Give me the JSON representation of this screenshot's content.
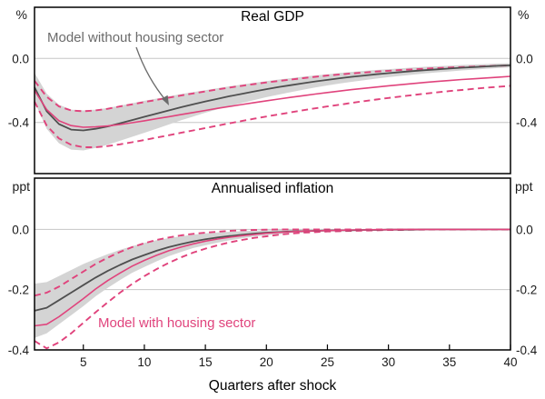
{
  "figure": {
    "xlabel": "Quarters after shock"
  },
  "annotations": {
    "no_housing": "Model without housing sector",
    "with_housing": "Model with housing sector"
  },
  "colors": {
    "gray": "#4f4f4f",
    "pink": "#e0437c",
    "band": "#d4d4d4",
    "grid": "#c6c6c6",
    "frame": "#000000",
    "annotation_gray": "#6b6b6b"
  },
  "chart_data": [
    {
      "type": "line",
      "title": "Real GDP",
      "unit": "%",
      "ylim": [
        -0.72,
        0.32
      ],
      "yticks": [
        0,
        -0.4
      ],
      "ytick_labels": [
        "0.0",
        "-0.4"
      ],
      "xticks": [
        5,
        10,
        15,
        20,
        25,
        30,
        35,
        40
      ],
      "x": [
        1,
        2,
        3,
        4,
        5,
        6,
        7,
        8,
        9,
        10,
        11,
        12,
        13,
        14,
        15,
        16,
        17,
        18,
        19,
        20,
        21,
        22,
        23,
        24,
        25,
        26,
        27,
        28,
        29,
        30,
        31,
        32,
        33,
        34,
        35,
        36,
        37,
        38,
        39,
        40
      ],
      "series": [
        {
          "id": "no-housing-band",
          "style": "area",
          "color_key": "band",
          "upper": [
            -0.09,
            -0.22,
            -0.29,
            -0.32,
            -0.325,
            -0.32,
            -0.31,
            -0.295,
            -0.28,
            -0.265,
            -0.251,
            -0.237,
            -0.223,
            -0.211,
            -0.199,
            -0.186,
            -0.174,
            -0.163,
            -0.152,
            -0.142,
            -0.132,
            -0.123,
            -0.114,
            -0.106,
            -0.099,
            -0.091,
            -0.084,
            -0.078,
            -0.072,
            -0.067,
            -0.062,
            -0.057,
            -0.052,
            -0.049,
            -0.045,
            -0.041,
            -0.038,
            -0.035,
            -0.032,
            -0.03
          ],
          "lower": [
            -0.27,
            -0.44,
            -0.53,
            -0.57,
            -0.575,
            -0.56,
            -0.54,
            -0.515,
            -0.49,
            -0.465,
            -0.439,
            -0.413,
            -0.387,
            -0.363,
            -0.339,
            -0.318,
            -0.298,
            -0.279,
            -0.26,
            -0.242,
            -0.226,
            -0.211,
            -0.196,
            -0.182,
            -0.169,
            -0.157,
            -0.146,
            -0.136,
            -0.126,
            -0.117,
            -0.109,
            -0.101,
            -0.094,
            -0.087,
            -0.081,
            -0.075,
            -0.07,
            -0.065,
            -0.06,
            -0.056
          ]
        },
        {
          "id": "with-housing-band-upper",
          "style": "dashed",
          "color_key": "pink",
          "width": 1.9,
          "values": [
            -0.14,
            -0.24,
            -0.3,
            -0.325,
            -0.33,
            -0.325,
            -0.315,
            -0.3,
            -0.287,
            -0.273,
            -0.259,
            -0.245,
            -0.232,
            -0.219,
            -0.206,
            -0.194,
            -0.182,
            -0.171,
            -0.16,
            -0.15,
            -0.141,
            -0.132,
            -0.123,
            -0.115,
            -0.107,
            -0.1,
            -0.094,
            -0.088,
            -0.082,
            -0.077,
            -0.072,
            -0.068,
            -0.064,
            -0.06,
            -0.057,
            -0.054,
            -0.051,
            -0.048,
            -0.046,
            -0.044
          ]
        },
        {
          "id": "with-housing-band-lower",
          "style": "dashed",
          "color_key": "pink",
          "width": 1.9,
          "values": [
            -0.27,
            -0.42,
            -0.5,
            -0.54,
            -0.555,
            -0.555,
            -0.548,
            -0.537,
            -0.524,
            -0.51,
            -0.495,
            -0.48,
            -0.465,
            -0.45,
            -0.435,
            -0.42,
            -0.405,
            -0.391,
            -0.377,
            -0.363,
            -0.35,
            -0.337,
            -0.324,
            -0.312,
            -0.3,
            -0.289,
            -0.278,
            -0.267,
            -0.257,
            -0.247,
            -0.238,
            -0.229,
            -0.22,
            -0.212,
            -0.204,
            -0.197,
            -0.19,
            -0.183,
            -0.177,
            -0.171
          ]
        },
        {
          "id": "no-housing-mean",
          "name": "Model without housing sector",
          "style": "solid",
          "color_key": "gray",
          "width": 1.8,
          "values": [
            -0.18,
            -0.33,
            -0.41,
            -0.445,
            -0.45,
            -0.44,
            -0.425,
            -0.405,
            -0.385,
            -0.365,
            -0.345,
            -0.325,
            -0.305,
            -0.287,
            -0.269,
            -0.252,
            -0.236,
            -0.221,
            -0.206,
            -0.192,
            -0.179,
            -0.167,
            -0.155,
            -0.144,
            -0.134,
            -0.124,
            -0.115,
            -0.107,
            -0.099,
            -0.092,
            -0.085,
            -0.079,
            -0.073,
            -0.068,
            -0.063,
            -0.058,
            -0.054,
            -0.05,
            -0.046,
            -0.043
          ]
        },
        {
          "id": "with-housing-mean",
          "name": "Model with housing sector",
          "style": "solid",
          "color_key": "pink",
          "width": 1.6,
          "values": [
            -0.2,
            -0.32,
            -0.39,
            -0.42,
            -0.43,
            -0.428,
            -0.422,
            -0.413,
            -0.402,
            -0.39,
            -0.377,
            -0.364,
            -0.351,
            -0.338,
            -0.325,
            -0.312,
            -0.3,
            -0.288,
            -0.276,
            -0.265,
            -0.254,
            -0.243,
            -0.233,
            -0.223,
            -0.213,
            -0.204,
            -0.195,
            -0.187,
            -0.179,
            -0.171,
            -0.164,
            -0.157,
            -0.15,
            -0.144,
            -0.138,
            -0.132,
            -0.127,
            -0.122,
            -0.117,
            -0.112
          ]
        }
      ]
    },
    {
      "type": "line",
      "title": "Annualised inflation",
      "unit": "ppt",
      "ylim": [
        -0.4,
        0.17
      ],
      "yticks": [
        0,
        -0.2,
        -0.4
      ],
      "ytick_labels": [
        "0.0",
        "-0.2",
        "-0.4"
      ],
      "xticks": [
        5,
        10,
        15,
        20,
        25,
        30,
        35,
        40
      ],
      "x": [
        1,
        2,
        3,
        4,
        5,
        6,
        7,
        8,
        9,
        10,
        11,
        12,
        13,
        14,
        15,
        16,
        17,
        18,
        19,
        20,
        21,
        22,
        23,
        24,
        25,
        26,
        27,
        28,
        29,
        30,
        31,
        32,
        33,
        34,
        35,
        36,
        37,
        38,
        39,
        40
      ],
      "series": [
        {
          "id": "no-housing-band",
          "style": "area",
          "color_key": "band",
          "upper": [
            -0.18,
            -0.175,
            -0.155,
            -0.135,
            -0.115,
            -0.098,
            -0.082,
            -0.068,
            -0.056,
            -0.045,
            -0.036,
            -0.029,
            -0.023,
            -0.018,
            -0.013,
            -0.01,
            -0.008,
            -0.006,
            -0.004,
            -0.003,
            -0.002,
            -0.002,
            -0.001,
            -0.001,
            0,
            0,
            0,
            0,
            0,
            0,
            0,
            0,
            0,
            0,
            0,
            0,
            0,
            0,
            0,
            0
          ],
          "lower": [
            -0.36,
            -0.345,
            -0.315,
            -0.285,
            -0.255,
            -0.222,
            -0.194,
            -0.168,
            -0.144,
            -0.125,
            -0.106,
            -0.089,
            -0.075,
            -0.062,
            -0.053,
            -0.044,
            -0.036,
            -0.03,
            -0.024,
            -0.019,
            -0.016,
            -0.012,
            -0.01,
            -0.008,
            -0.006,
            -0.005,
            -0.004,
            -0.003,
            -0.003,
            -0.002,
            -0.002,
            -0.001,
            -0.001,
            0,
            0,
            0,
            0,
            0,
            0,
            0
          ]
        },
        {
          "id": "with-housing-band-upper",
          "style": "dashed",
          "color_key": "pink",
          "width": 1.9,
          "values": [
            -0.22,
            -0.21,
            -0.19,
            -0.165,
            -0.14,
            -0.115,
            -0.094,
            -0.075,
            -0.059,
            -0.046,
            -0.035,
            -0.027,
            -0.02,
            -0.015,
            -0.011,
            -0.008,
            -0.005,
            -0.003,
            -0.002,
            -0.001,
            0,
            0,
            0,
            0,
            0,
            0,
            0,
            0,
            0,
            0,
            0,
            0,
            0,
            0,
            0,
            0,
            0,
            0,
            0,
            0
          ]
        },
        {
          "id": "with-housing-band-lower",
          "style": "dashed",
          "color_key": "pink",
          "width": 1.9,
          "values": [
            -0.37,
            -0.395,
            -0.375,
            -0.345,
            -0.31,
            -0.275,
            -0.242,
            -0.21,
            -0.181,
            -0.155,
            -0.132,
            -0.111,
            -0.093,
            -0.077,
            -0.064,
            -0.053,
            -0.043,
            -0.035,
            -0.028,
            -0.023,
            -0.018,
            -0.014,
            -0.011,
            -0.009,
            -0.007,
            -0.006,
            -0.005,
            -0.004,
            -0.003,
            -0.002,
            -0.002,
            -0.001,
            -0.001,
            0,
            0,
            0,
            0,
            0,
            0,
            0
          ]
        },
        {
          "id": "no-housing-mean",
          "name": "Model without housing sector",
          "style": "solid",
          "color_key": "gray",
          "width": 1.8,
          "values": [
            -0.27,
            -0.26,
            -0.235,
            -0.21,
            -0.185,
            -0.16,
            -0.138,
            -0.118,
            -0.1,
            -0.085,
            -0.071,
            -0.059,
            -0.049,
            -0.04,
            -0.033,
            -0.027,
            -0.022,
            -0.018,
            -0.014,
            -0.011,
            -0.009,
            -0.007,
            -0.006,
            -0.005,
            -0.004,
            -0.003,
            -0.003,
            -0.002,
            -0.002,
            -0.001,
            -0.001,
            -0.001,
            0,
            0,
            0,
            0,
            0,
            0,
            0,
            0
          ]
        },
        {
          "id": "with-housing-mean",
          "name": "Model with housing sector",
          "style": "solid",
          "color_key": "pink",
          "width": 1.6,
          "values": [
            -0.32,
            -0.315,
            -0.29,
            -0.26,
            -0.23,
            -0.198,
            -0.17,
            -0.145,
            -0.122,
            -0.103,
            -0.086,
            -0.071,
            -0.059,
            -0.048,
            -0.039,
            -0.032,
            -0.026,
            -0.021,
            -0.017,
            -0.013,
            -0.01,
            -0.008,
            -0.006,
            -0.005,
            -0.004,
            -0.003,
            -0.002,
            -0.002,
            -0.001,
            -0.001,
            0,
            0,
            0,
            0,
            0,
            0,
            0,
            0,
            0,
            0
          ]
        }
      ]
    }
  ]
}
